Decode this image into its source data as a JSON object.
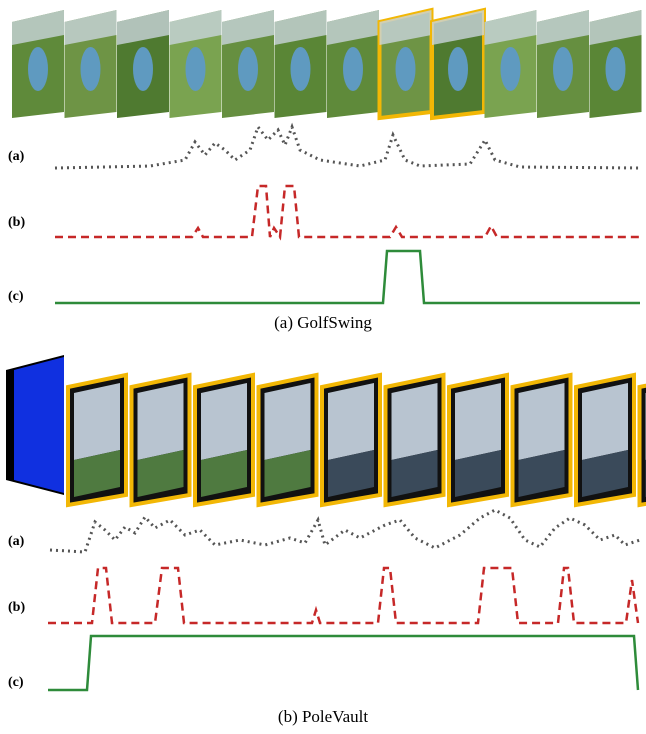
{
  "panels": [
    {
      "caption": "(a)  GolfSwing",
      "rows": [
        "(a)",
        "(b)",
        "(c)"
      ]
    },
    {
      "caption": "(b)  PoleVault",
      "rows": [
        "(a)",
        "(b)",
        "(c)"
      ]
    }
  ]
}
